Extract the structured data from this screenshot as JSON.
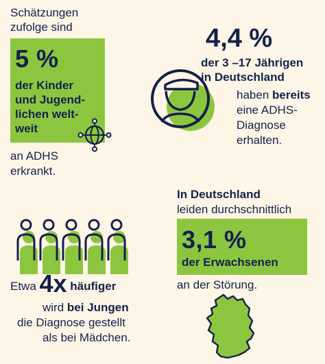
{
  "colors": {
    "background": "#fdf5e6",
    "green": "#8cc63f",
    "navy": "#14204a"
  },
  "block1": {
    "intro_line1": "Schätzungen",
    "intro_line2": "zufolge sind",
    "big_value": "5 %",
    "line1": "der Kinder",
    "line2": "und Jugend-",
    "line3": "lichen welt-",
    "line4": "weit",
    "outro_line1": "an ADHS",
    "outro_line2": "erkrankt.",
    "icon": "globe-network-icon"
  },
  "block2": {
    "big_value": "4,4 %",
    "line1": "der 3 –17 Jährigen",
    "line2": "in Deutschland",
    "line3_a": "haben ",
    "line3_b": "bereits",
    "line4": "eine ADHS-",
    "line5": "Diagnose",
    "line6": "erhalten.",
    "icon": "person-with-cap-icon"
  },
  "block3": {
    "prefix": "Etwa ",
    "big_value": "4x",
    "suffix": " häufiger",
    "line2_a": "wird ",
    "line2_b": "bei Jungen",
    "line3": "die Diagnose gestellt",
    "line4": "als bei Mädchen.",
    "icon": "group-of-people-icon"
  },
  "block4": {
    "line1": "In Deutschland",
    "line2": "leiden durchschnittlich",
    "big_value": "3,1 %",
    "line3": "der Erwachsenen",
    "line4": "an der Störung.",
    "icon": "germany-map-icon"
  }
}
